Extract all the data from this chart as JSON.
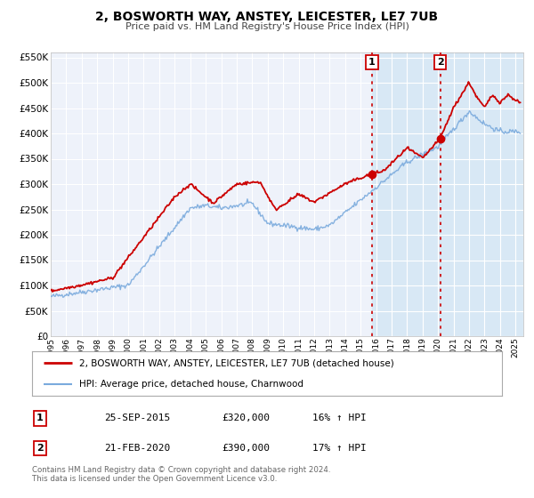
{
  "title": "2, BOSWORTH WAY, ANSTEY, LEICESTER, LE7 7UB",
  "subtitle": "Price paid vs. HM Land Registry's House Price Index (HPI)",
  "ylim": [
    0,
    560000
  ],
  "yticks": [
    0,
    50000,
    100000,
    150000,
    200000,
    250000,
    300000,
    350000,
    400000,
    450000,
    500000,
    550000
  ],
  "ytick_labels": [
    "£0",
    "£50K",
    "£100K",
    "£150K",
    "£200K",
    "£250K",
    "£300K",
    "£350K",
    "£400K",
    "£450K",
    "£500K",
    "£550K"
  ],
  "xlim_start": 1995.0,
  "xlim_end": 2025.5,
  "xtick_years": [
    1995,
    1996,
    1997,
    1998,
    1999,
    2000,
    2001,
    2002,
    2003,
    2004,
    2005,
    2006,
    2007,
    2008,
    2009,
    2010,
    2011,
    2012,
    2013,
    2014,
    2015,
    2016,
    2017,
    2018,
    2019,
    2020,
    2021,
    2022,
    2023,
    2024,
    2025
  ],
  "red_color": "#cc0000",
  "blue_color": "#7aaadd",
  "vline_color": "#cc0000",
  "marker1_x": 2015.73,
  "marker1_y": 320000,
  "marker2_x": 2020.13,
  "marker2_y": 390000,
  "label1_num": "1",
  "label2_num": "2",
  "legend_line1": "2, BOSWORTH WAY, ANSTEY, LEICESTER, LE7 7UB (detached house)",
  "legend_line2": "HPI: Average price, detached house, Charnwood",
  "annotation1_num": "1",
  "annotation1_date": "25-SEP-2015",
  "annotation1_price": "£320,000",
  "annotation1_hpi": "16% ↑ HPI",
  "annotation2_num": "2",
  "annotation2_date": "21-FEB-2020",
  "annotation2_price": "£390,000",
  "annotation2_hpi": "17% ↑ HPI",
  "footer_line1": "Contains HM Land Registry data © Crown copyright and database right 2024.",
  "footer_line2": "This data is licensed under the Open Government Licence v3.0.",
  "bg_color": "#ffffff",
  "plot_bg_color": "#eef2fa",
  "grid_color": "#ffffff",
  "shade_color": "#d8e8f5"
}
